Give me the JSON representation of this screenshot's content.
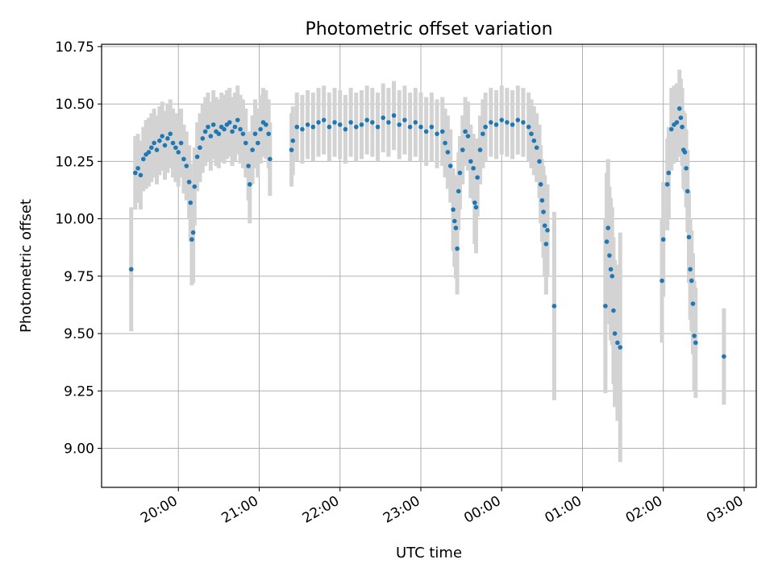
{
  "chart_data": {
    "type": "scatter",
    "title": "Photometric offset variation",
    "xlabel": "UTC time",
    "ylabel": "Photometric offset",
    "xlim": [
      "19:03",
      "03:09"
    ],
    "ylim": [
      8.83,
      10.76
    ],
    "x_ticks": [
      "20:00",
      "21:00",
      "22:00",
      "23:00",
      "00:00",
      "01:00",
      "02:00",
      "03:00"
    ],
    "y_ticks": [
      "9.00",
      "9.25",
      "9.50",
      "9.75",
      "10.00",
      "10.25",
      "10.50",
      "10.75"
    ],
    "grid": true,
    "series_color": "#1f77b4",
    "errorbar_color": "#d3d3d3",
    "notes": "Points are [time, offset, error] read approximately from the plot.",
    "points": [
      [
        "19:25",
        9.78,
        0.27
      ],
      [
        "19:28",
        10.2,
        0.16
      ],
      [
        "19:30",
        10.22,
        0.15
      ],
      [
        "19:32",
        10.19,
        0.15
      ],
      [
        "19:34",
        10.26,
        0.14
      ],
      [
        "19:36",
        10.28,
        0.15
      ],
      [
        "19:38",
        10.29,
        0.15
      ],
      [
        "19:40",
        10.31,
        0.15
      ],
      [
        "19:42",
        10.33,
        0.15
      ],
      [
        "19:44",
        10.3,
        0.15
      ],
      [
        "19:46",
        10.34,
        0.15
      ],
      [
        "19:48",
        10.36,
        0.15
      ],
      [
        "19:50",
        10.32,
        0.15
      ],
      [
        "19:52",
        10.35,
        0.15
      ],
      [
        "19:54",
        10.37,
        0.15
      ],
      [
        "19:56",
        10.33,
        0.15
      ],
      [
        "19:58",
        10.31,
        0.15
      ],
      [
        "20:00",
        10.29,
        0.15
      ],
      [
        "20:02",
        10.33,
        0.15
      ],
      [
        "20:04",
        10.26,
        0.15
      ],
      [
        "20:06",
        10.23,
        0.15
      ],
      [
        "20:08",
        10.16,
        0.16
      ],
      [
        "20:09",
        10.07,
        0.17
      ],
      [
        "20:10",
        9.91,
        0.2
      ],
      [
        "20:11",
        9.94,
        0.22
      ],
      [
        "20:12",
        10.14,
        0.17
      ],
      [
        "20:14",
        10.27,
        0.15
      ],
      [
        "20:16",
        10.31,
        0.15
      ],
      [
        "20:18",
        10.35,
        0.15
      ],
      [
        "20:20",
        10.38,
        0.15
      ],
      [
        "20:22",
        10.4,
        0.15
      ],
      [
        "20:24",
        10.36,
        0.15
      ],
      [
        "20:26",
        10.41,
        0.15
      ],
      [
        "20:28",
        10.38,
        0.15
      ],
      [
        "20:30",
        10.37,
        0.15
      ],
      [
        "20:32",
        10.4,
        0.15
      ],
      [
        "20:34",
        10.39,
        0.15
      ],
      [
        "20:36",
        10.41,
        0.15
      ],
      [
        "20:38",
        10.42,
        0.15
      ],
      [
        "20:40",
        10.38,
        0.15
      ],
      [
        "20:42",
        10.4,
        0.15
      ],
      [
        "20:44",
        10.43,
        0.15
      ],
      [
        "20:46",
        10.39,
        0.15
      ],
      [
        "20:48",
        10.37,
        0.15
      ],
      [
        "20:50",
        10.33,
        0.15
      ],
      [
        "20:52",
        10.23,
        0.15
      ],
      [
        "20:53",
        10.15,
        0.17
      ],
      [
        "20:55",
        10.3,
        0.15
      ],
      [
        "20:57",
        10.37,
        0.15
      ],
      [
        "20:59",
        10.33,
        0.15
      ],
      [
        "21:01",
        10.39,
        0.15
      ],
      [
        "21:03",
        10.42,
        0.15
      ],
      [
        "21:05",
        10.41,
        0.15
      ],
      [
        "21:07",
        10.37,
        0.15
      ],
      [
        "21:08",
        10.26,
        0.16
      ],
      [
        "21:24",
        10.3,
        0.16
      ],
      [
        "21:25",
        10.34,
        0.15
      ],
      [
        "21:28",
        10.4,
        0.15
      ],
      [
        "21:32",
        10.39,
        0.15
      ],
      [
        "21:36",
        10.41,
        0.15
      ],
      [
        "21:40",
        10.4,
        0.15
      ],
      [
        "21:44",
        10.42,
        0.15
      ],
      [
        "21:48",
        10.43,
        0.15
      ],
      [
        "21:52",
        10.4,
        0.15
      ],
      [
        "21:56",
        10.42,
        0.15
      ],
      [
        "22:00",
        10.41,
        0.15
      ],
      [
        "22:04",
        10.39,
        0.15
      ],
      [
        "22:08",
        10.42,
        0.15
      ],
      [
        "22:12",
        10.4,
        0.15
      ],
      [
        "22:16",
        10.41,
        0.15
      ],
      [
        "22:20",
        10.43,
        0.15
      ],
      [
        "22:24",
        10.42,
        0.15
      ],
      [
        "22:28",
        10.4,
        0.15
      ],
      [
        "22:32",
        10.44,
        0.15
      ],
      [
        "22:36",
        10.42,
        0.15
      ],
      [
        "22:40",
        10.45,
        0.15
      ],
      [
        "22:44",
        10.41,
        0.15
      ],
      [
        "22:48",
        10.43,
        0.15
      ],
      [
        "22:52",
        10.4,
        0.15
      ],
      [
        "22:56",
        10.42,
        0.15
      ],
      [
        "23:00",
        10.4,
        0.15
      ],
      [
        "23:04",
        10.38,
        0.15
      ],
      [
        "23:08",
        10.4,
        0.15
      ],
      [
        "23:12",
        10.37,
        0.15
      ],
      [
        "23:16",
        10.38,
        0.15
      ],
      [
        "23:18",
        10.33,
        0.15
      ],
      [
        "23:20",
        10.29,
        0.16
      ],
      [
        "23:22",
        10.23,
        0.16
      ],
      [
        "23:24",
        10.04,
        0.18
      ],
      [
        "23:25",
        9.99,
        0.2
      ],
      [
        "23:26",
        9.96,
        0.22
      ],
      [
        "23:27",
        9.87,
        0.2
      ],
      [
        "23:28",
        10.12,
        0.17
      ],
      [
        "23:29",
        10.2,
        0.16
      ],
      [
        "23:31",
        10.3,
        0.15
      ],
      [
        "23:33",
        10.38,
        0.15
      ],
      [
        "23:35",
        10.36,
        0.15
      ],
      [
        "23:37",
        10.25,
        0.16
      ],
      [
        "23:39",
        10.22,
        0.15
      ],
      [
        "23:40",
        10.07,
        0.18
      ],
      [
        "23:41",
        10.05,
        0.2
      ],
      [
        "23:42",
        10.18,
        0.17
      ],
      [
        "23:44",
        10.3,
        0.15
      ],
      [
        "23:46",
        10.37,
        0.15
      ],
      [
        "23:48",
        10.4,
        0.15
      ],
      [
        "23:52",
        10.42,
        0.15
      ],
      [
        "23:56",
        10.41,
        0.15
      ],
      [
        "00:00",
        10.43,
        0.15
      ],
      [
        "00:04",
        10.42,
        0.15
      ],
      [
        "00:08",
        10.41,
        0.15
      ],
      [
        "00:12",
        10.43,
        0.15
      ],
      [
        "00:16",
        10.42,
        0.15
      ],
      [
        "00:20",
        10.4,
        0.15
      ],
      [
        "00:22",
        10.37,
        0.15
      ],
      [
        "00:24",
        10.34,
        0.15
      ],
      [
        "00:26",
        10.31,
        0.15
      ],
      [
        "00:28",
        10.25,
        0.16
      ],
      [
        "00:29",
        10.15,
        0.17
      ],
      [
        "00:30",
        10.08,
        0.18
      ],
      [
        "00:31",
        10.03,
        0.2
      ],
      [
        "00:32",
        9.97,
        0.22
      ],
      [
        "00:33",
        9.89,
        0.22
      ],
      [
        "00:34",
        9.95,
        0.2
      ],
      [
        "00:39",
        9.62,
        0.41
      ],
      [
        "01:17",
        9.62,
        0.38
      ],
      [
        "01:18",
        9.9,
        0.3
      ],
      [
        "01:19",
        9.96,
        0.3
      ],
      [
        "01:20",
        9.84,
        0.3
      ],
      [
        "01:21",
        9.78,
        0.31
      ],
      [
        "01:22",
        9.75,
        0.3
      ],
      [
        "01:23",
        9.6,
        0.32
      ],
      [
        "01:24",
        9.5,
        0.32
      ],
      [
        "01:26",
        9.46,
        0.34
      ],
      [
        "01:28",
        9.44,
        0.5
      ],
      [
        "01:59",
        9.73,
        0.27
      ],
      [
        "02:00",
        9.91,
        0.25
      ],
      [
        "02:03",
        10.15,
        0.2
      ],
      [
        "02:04",
        10.2,
        0.2
      ],
      [
        "02:06",
        10.39,
        0.18
      ],
      [
        "02:08",
        10.41,
        0.17
      ],
      [
        "02:10",
        10.42,
        0.17
      ],
      [
        "02:12",
        10.48,
        0.17
      ],
      [
        "02:13",
        10.44,
        0.17
      ],
      [
        "02:14",
        10.4,
        0.17
      ],
      [
        "02:15",
        10.3,
        0.17
      ],
      [
        "02:16",
        10.29,
        0.17
      ],
      [
        "02:17",
        10.22,
        0.17
      ],
      [
        "02:18",
        10.12,
        0.18
      ],
      [
        "02:19",
        9.92,
        0.2
      ],
      [
        "02:20",
        9.78,
        0.22
      ],
      [
        "02:21",
        9.73,
        0.22
      ],
      [
        "02:22",
        9.63,
        0.22
      ],
      [
        "02:23",
        9.49,
        0.24
      ],
      [
        "02:24",
        9.46,
        0.24
      ],
      [
        "02:45",
        9.4,
        0.21
      ]
    ]
  }
}
